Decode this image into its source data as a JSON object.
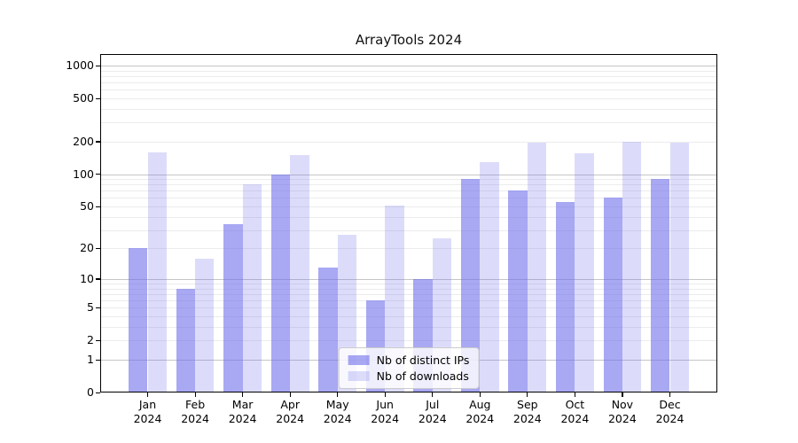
{
  "chart_data": {
    "type": "bar",
    "title": "ArrayTools 2024",
    "categories": [
      "Jan",
      "Feb",
      "Mar",
      "Apr",
      "May",
      "Jun",
      "Jul",
      "Aug",
      "Sep",
      "Oct",
      "Nov",
      "Dec"
    ],
    "x_tick_second_line": "2024",
    "series": [
      {
        "name": "Nb of distinct IPs",
        "color": "rgba(105,105,235,0.58)",
        "values": [
          20,
          8,
          34,
          100,
          13,
          6,
          10,
          90,
          70,
          55,
          60,
          90
        ]
      },
      {
        "name": "Nb of downloads",
        "color": "rgba(105,105,235,0.23)",
        "values": [
          160,
          16,
          80,
          150,
          27,
          51,
          25,
          130,
          195,
          155,
          200,
          195
        ]
      }
    ],
    "y_scale": "log1p",
    "y_ticks": [
      0,
      1,
      2,
      5,
      10,
      20,
      50,
      100,
      200,
      500,
      1000
    ],
    "y_major_gridlines": [
      1,
      10,
      100,
      1000
    ],
    "ylim": [
      0,
      1276
    ],
    "grid": true,
    "legend_position": "lower center",
    "colors": {
      "bar_dark": "rgba(105,105,235,0.58)",
      "bar_light": "rgba(105,105,235,0.23)",
      "major_grid": "#c6c6c6",
      "minor_grid": "#ececec",
      "axis": "#000000"
    }
  }
}
